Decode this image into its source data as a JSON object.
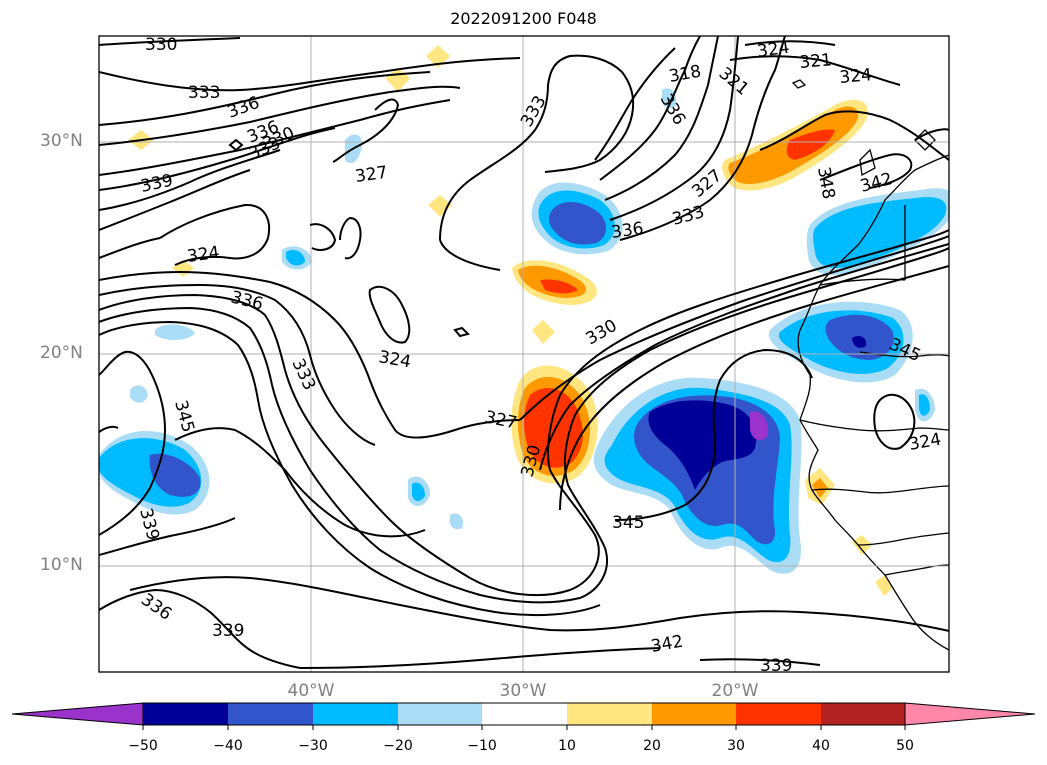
{
  "title": "2022091200 F048",
  "lat_labels": [
    "30°N",
    "20°N",
    "10°N"
  ],
  "lon_labels": [
    "40°W",
    "30°W",
    "20°W"
  ],
  "contour_labels": [
    "330",
    "333",
    "336",
    "336",
    "333",
    "330",
    "339",
    "327",
    "324",
    "336",
    "324",
    "333",
    "345",
    "339",
    "336",
    "339",
    "342",
    "339",
    "345",
    "327",
    "330",
    "330",
    "333",
    "336",
    "327",
    "333",
    "336",
    "318",
    "321",
    "324",
    "321",
    "324",
    "342",
    "348",
    "345",
    "324"
  ],
  "colorbar": {
    "ticks": [
      "−50",
      "−40",
      "−30",
      "−20",
      "−10",
      "10",
      "20",
      "30",
      "40",
      "50"
    ],
    "colors": [
      "#9933cc",
      "#000099",
      "#3355cc",
      "#00bbff",
      "#aaddf5",
      "#ffffff",
      "#ffe680",
      "#ff9900",
      "#ff3300",
      "#b22222",
      "#ff88aa"
    ]
  }
}
